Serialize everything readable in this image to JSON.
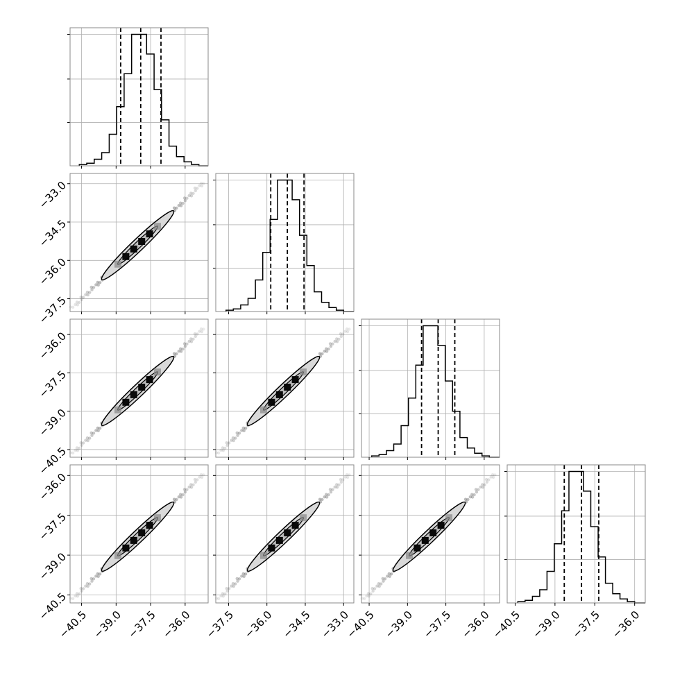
{
  "chart_data": {
    "type": "corner",
    "n_params": 4,
    "params": [
      {
        "range": [
          -41.0,
          -35.0
        ],
        "ticks": [
          -40.5,
          -39.0,
          -37.5,
          -36.0
        ],
        "tick_labels": [
          "−40.5",
          "−39.0",
          "−37.5",
          "−36.0"
        ],
        "quantiles": [
          -38.8,
          -37.93,
          -37.05
        ],
        "hist": [
          1,
          2,
          5,
          10,
          24,
          45,
          70,
          100,
          100,
          85,
          58,
          35,
          15,
          7,
          3,
          1
        ]
      },
      {
        "range": [
          -38.0,
          -32.6
        ],
        "ticks": [
          -37.5,
          -36.0,
          -34.5,
          -33.0
        ],
        "tick_labels": [
          "−37.5",
          "−36.0",
          "−34.5",
          "−33.0"
        ],
        "quantiles": [
          -35.85,
          -35.2,
          -34.55
        ],
        "hist": [
          1,
          2,
          5,
          10,
          24,
          45,
          70,
          100,
          100,
          85,
          58,
          35,
          15,
          7,
          3,
          1
        ]
      },
      {
        "range": [
          -40.8,
          -35.4
        ],
        "ticks": [
          -40.5,
          -39.0,
          -37.5,
          -36.0
        ],
        "tick_labels": [
          "−40.5",
          "−39.0",
          "−37.5",
          "−36.0"
        ],
        "quantiles": [
          -38.45,
          -37.8,
          -37.15
        ],
        "hist": [
          1,
          2,
          5,
          10,
          24,
          45,
          70,
          100,
          100,
          85,
          58,
          35,
          15,
          7,
          3,
          1
        ]
      },
      {
        "range": [
          -40.8,
          -35.6
        ],
        "ticks": [
          -40.5,
          -39.0,
          -37.5,
          -36.0
        ],
        "tick_labels": [
          "−40.5",
          "−39.0",
          "−37.5",
          "−36.0"
        ],
        "quantiles": [
          -38.65,
          -38.0,
          -37.35
        ],
        "hist": [
          1,
          2,
          5,
          10,
          24,
          45,
          70,
          100,
          100,
          85,
          58,
          35,
          15,
          7,
          3,
          1
        ]
      }
    ],
    "hist_ylim": [
      0,
      100
    ],
    "grid": true,
    "title": "",
    "xlabel": "",
    "ylabel": ""
  },
  "colors": {
    "hist": "#000000",
    "contour_fill": "#d9d9d9",
    "grid": "#b0b0b0",
    "frame": "#888888"
  }
}
